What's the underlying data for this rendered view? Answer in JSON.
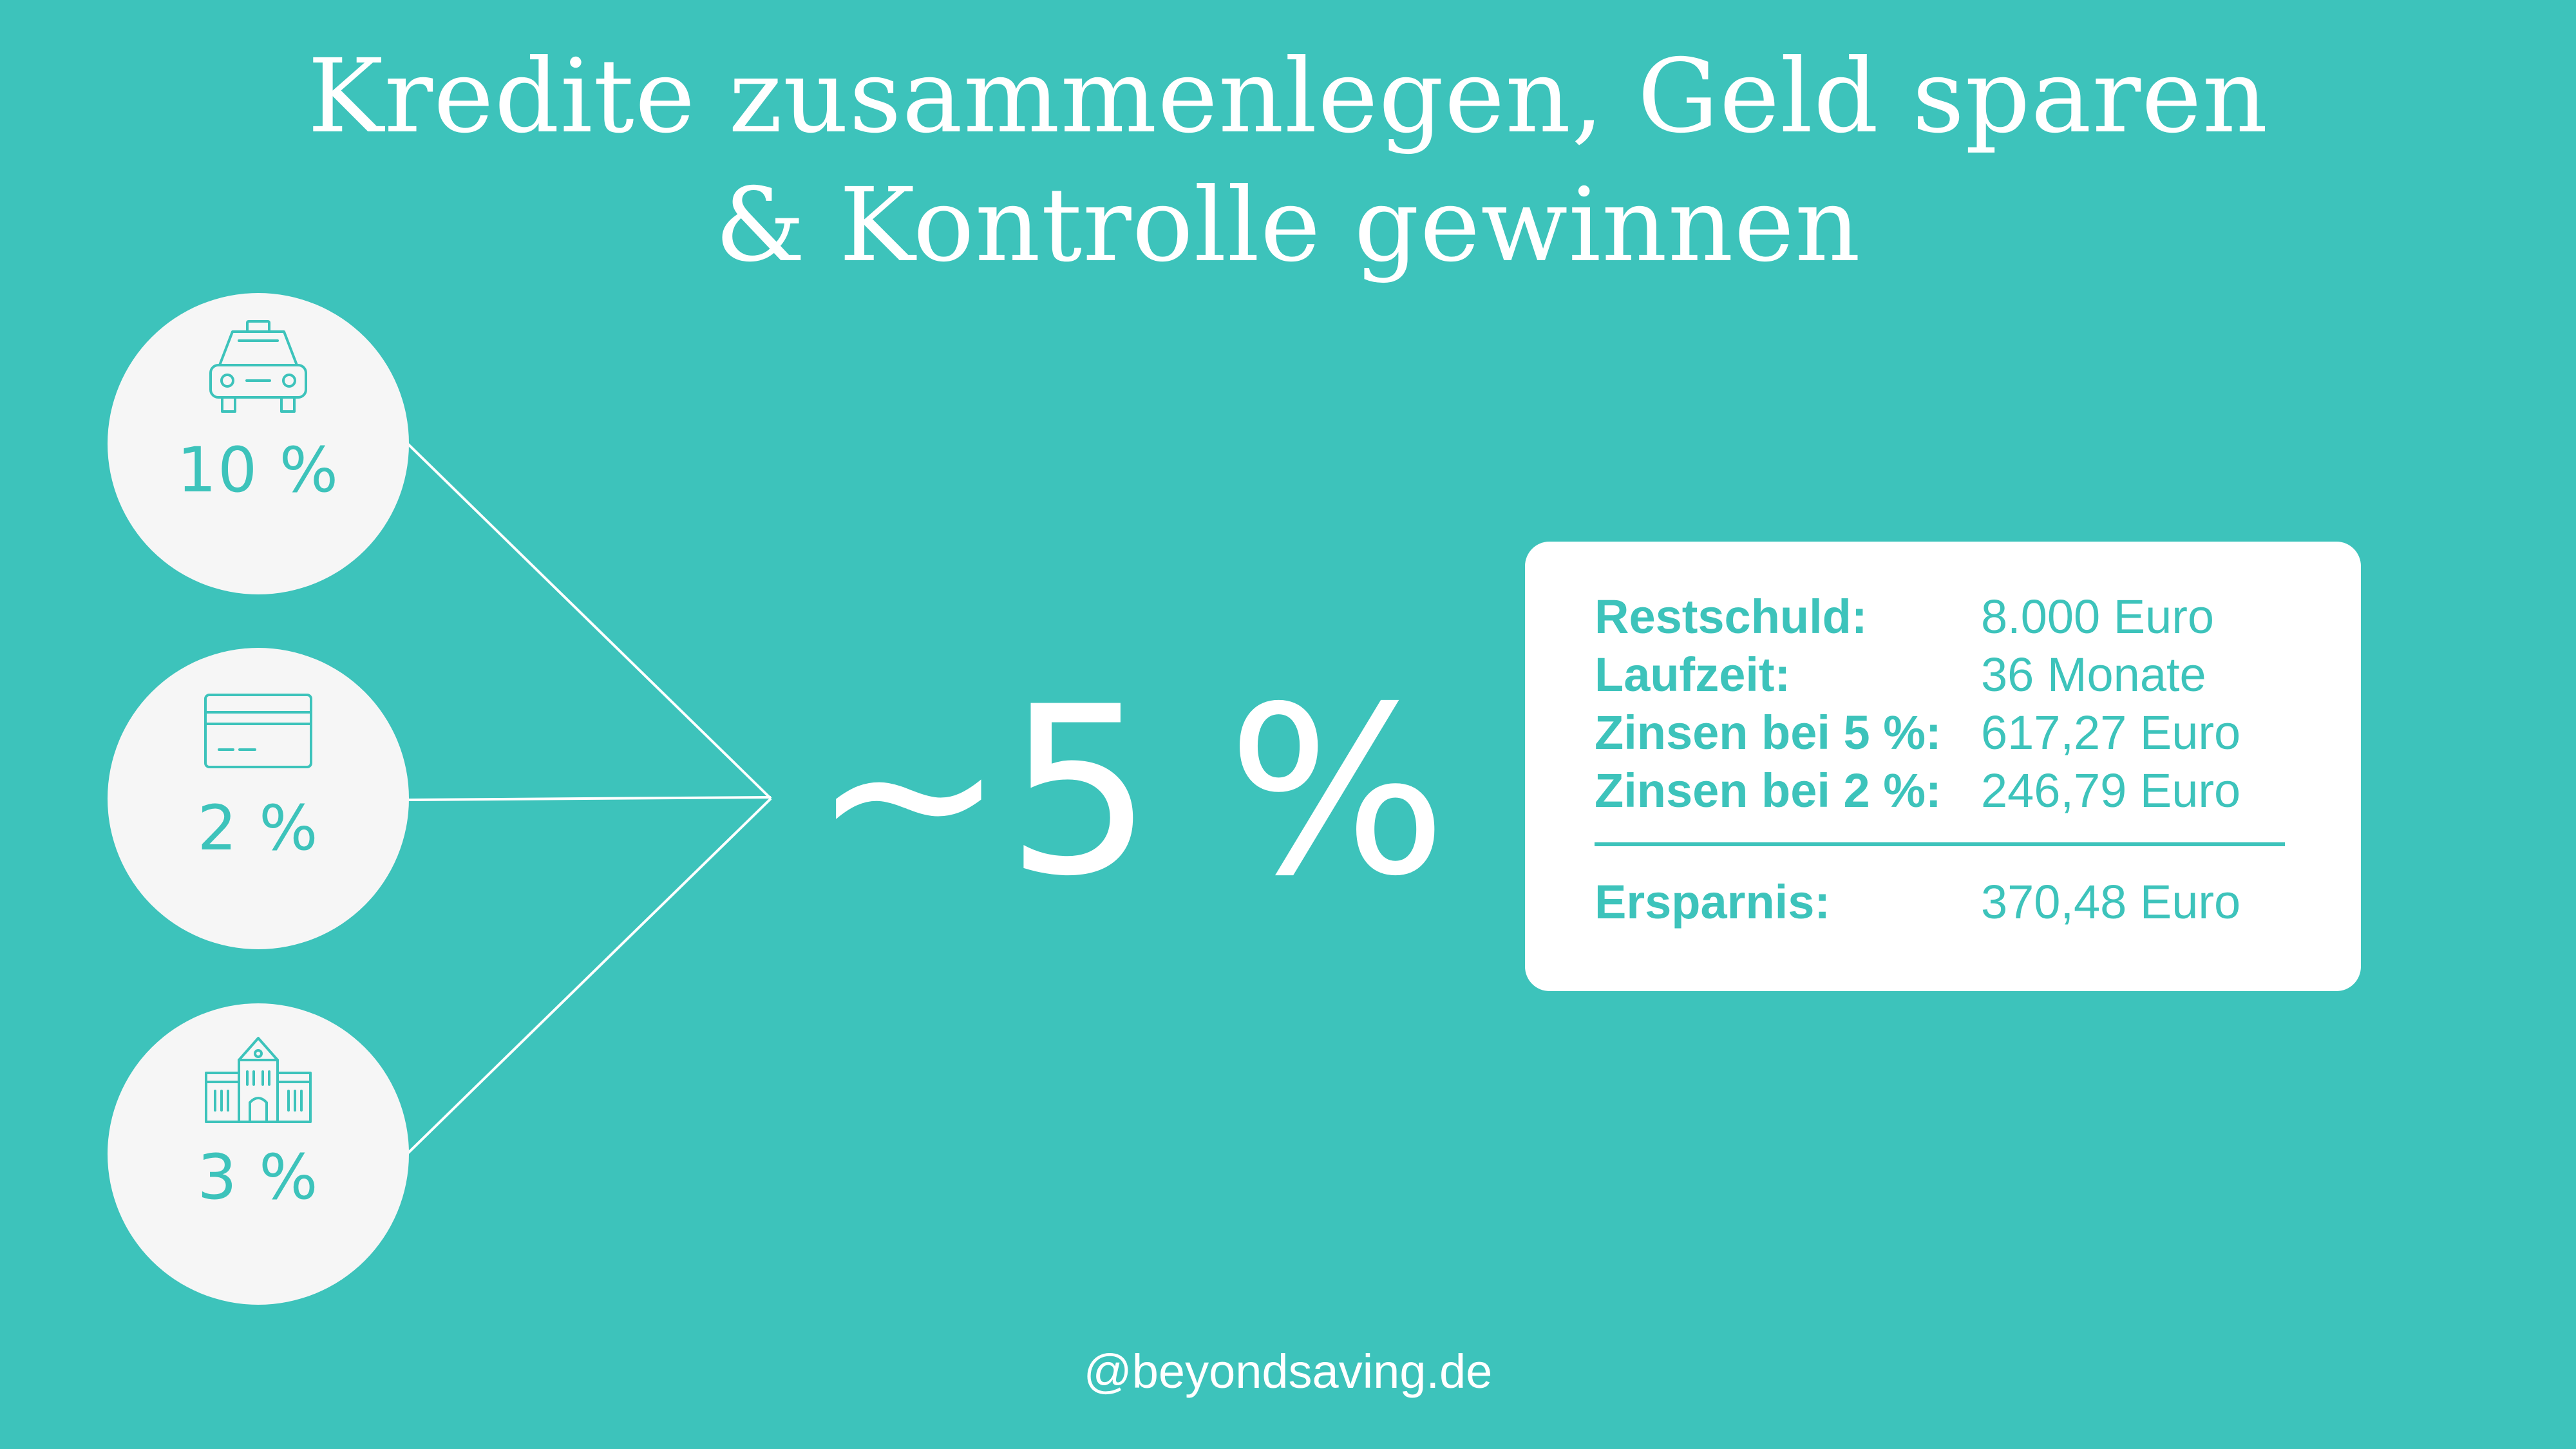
{
  "title": {
    "line1": "Kredite zusammenlegen, Geld sparen",
    "line2": "& Kontrolle gewinnen"
  },
  "loans": [
    {
      "icon": "car-icon",
      "rate": "10 %"
    },
    {
      "icon": "credit-card-icon",
      "rate": "2 %"
    },
    {
      "icon": "building-icon",
      "rate": "3 %"
    }
  ],
  "combined_rate": "~5 %",
  "summary": {
    "rows": [
      {
        "label": "Restschuld:",
        "value": "8.000 Euro"
      },
      {
        "label": "Laufzeit:",
        "value": "36 Monate"
      },
      {
        "label": "Zinsen bei 5 %:",
        "value": "617,27 Euro"
      },
      {
        "label": "Zinsen bei 2 %:",
        "value": "246,79 Euro"
      }
    ],
    "total": {
      "label": "Ersparnis:",
      "value": "370,48 Euro"
    }
  },
  "footer": "@beyondsaving.de",
  "colors": {
    "background": "#3dc3bb",
    "accent": "#3dc3bb",
    "circle": "#f6f6f6",
    "card": "#ffffff",
    "text_light": "#ffffff"
  }
}
